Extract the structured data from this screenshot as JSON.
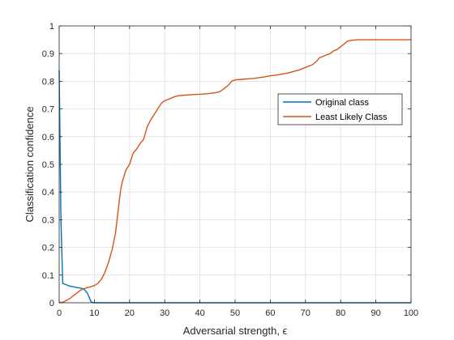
{
  "chart_data": {
    "type": "line",
    "title": "",
    "xlabel": "Adversarial strength, ϵ",
    "ylabel": "Classification confidence",
    "xlim": [
      0,
      100
    ],
    "ylim": [
      0,
      1
    ],
    "xticks": [
      0,
      10,
      20,
      30,
      40,
      50,
      60,
      70,
      80,
      90,
      100
    ],
    "yticks": [
      0,
      0.1,
      0.2,
      0.3,
      0.4,
      0.5,
      0.6,
      0.7,
      0.8,
      0.9,
      1
    ],
    "grid": true,
    "legend_position": "right",
    "series": [
      {
        "name": "Original class",
        "color": "#0072BD",
        "x": [
          0,
          0.5,
          1,
          2,
          3,
          4,
          5,
          6,
          7,
          8,
          9,
          9.5,
          10,
          15,
          20,
          30,
          40,
          50,
          60,
          70,
          80,
          90,
          100
        ],
        "y": [
          0.84,
          0.3,
          0.07,
          0.065,
          0.06,
          0.058,
          0.055,
          0.053,
          0.05,
          0.035,
          0.005,
          0.001,
          0,
          0,
          0,
          0,
          0,
          0,
          0,
          0,
          0,
          0,
          0
        ]
      },
      {
        "name": "Least Likely Class",
        "color": "#D95319",
        "x": [
          0,
          1,
          2,
          3,
          4,
          5,
          6,
          7,
          8,
          9,
          10,
          11,
          12,
          13,
          14,
          15,
          16,
          17,
          17.5,
          18,
          19,
          20,
          21,
          22,
          23,
          24,
          25,
          26,
          27,
          28,
          29,
          30,
          31,
          32,
          33,
          34,
          36,
          38,
          40,
          42,
          44,
          45,
          46,
          47,
          48,
          49,
          50,
          52,
          55,
          58,
          60,
          62,
          65,
          68,
          70,
          72,
          73,
          74,
          75,
          76,
          77,
          78,
          79,
          80,
          81,
          82,
          83,
          85,
          90,
          95,
          100
        ],
        "y": [
          0,
          0.002,
          0.008,
          0.015,
          0.025,
          0.035,
          0.045,
          0.05,
          0.055,
          0.058,
          0.062,
          0.07,
          0.085,
          0.11,
          0.145,
          0.19,
          0.25,
          0.36,
          0.41,
          0.44,
          0.48,
          0.5,
          0.54,
          0.555,
          0.575,
          0.59,
          0.635,
          0.66,
          0.68,
          0.7,
          0.72,
          0.73,
          0.735,
          0.74,
          0.745,
          0.748,
          0.75,
          0.752,
          0.753,
          0.755,
          0.758,
          0.76,
          0.765,
          0.775,
          0.785,
          0.8,
          0.805,
          0.807,
          0.81,
          0.815,
          0.82,
          0.823,
          0.83,
          0.84,
          0.85,
          0.86,
          0.87,
          0.885,
          0.89,
          0.895,
          0.9,
          0.91,
          0.915,
          0.925,
          0.935,
          0.945,
          0.948,
          0.95,
          0.95,
          0.95,
          0.95
        ]
      }
    ]
  }
}
